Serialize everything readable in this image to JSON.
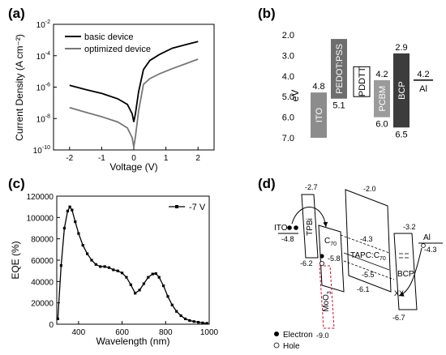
{
  "chart_data": [
    {
      "panel": "(a)",
      "type": "line",
      "xlabel": "Voltage (V)",
      "ylabel": "Current Density (A cm⁻²)",
      "xlim": [
        -2.5,
        2.5
      ],
      "ylim_log10": [
        -10,
        -2
      ],
      "xticks": [
        "-2",
        "-1",
        "0",
        "1",
        "2"
      ],
      "yticks": [
        {
          "base": "10",
          "exp": "-2"
        },
        {
          "base": "10",
          "exp": "-4"
        },
        {
          "base": "10",
          "exp": "-6"
        },
        {
          "base": "10",
          "exp": "-8"
        },
        {
          "base": "10",
          "exp": "-10"
        }
      ],
      "legend_position": "top-left",
      "series": [
        {
          "name": "basic device",
          "color": "#000000",
          "x": [
            -2,
            -1.5,
            -1,
            -0.5,
            -0.2,
            -0.05,
            0,
            0.05,
            0.15,
            0.3,
            0.5,
            0.8,
            1.2,
            1.6,
            2
          ],
          "y": [
            1.3e-06,
            7e-07,
            4e-07,
            1.8e-07,
            8e-08,
            2e-08,
            6e-09,
            2e-08,
            5e-07,
            1.3e-05,
            5e-05,
            0.00012,
            0.0003,
            0.0005,
            0.0008
          ]
        },
        {
          "name": "optimized device",
          "color": "#777777",
          "x": [
            -2,
            -1.5,
            -1,
            -0.5,
            -0.2,
            -0.05,
            0,
            0.05,
            0.15,
            0.3,
            0.5,
            0.8,
            1.2,
            1.6,
            2
          ],
          "y": [
            5e-08,
            2.5e-08,
            1.3e-08,
            6e-09,
            2.5e-09,
            6e-10,
            1.5e-10,
            7e-10,
            3e-08,
            1.5e-06,
            3.5e-06,
            7e-06,
            1.5e-05,
            3e-05,
            6e-05
          ]
        }
      ]
    },
    {
      "panel": "(b)",
      "type": "bar",
      "ylabel": "eV",
      "ylim": [
        7.0,
        2.0
      ],
      "yticks": [
        "2.0",
        "3.0",
        "4.0",
        "5.0",
        "6.0",
        "7.0"
      ],
      "levels": [
        {
          "name": "ITO",
          "top": 4.8,
          "bottom": 7.0,
          "color": "#8c8c8c",
          "labels": [
            "4.8"
          ]
        },
        {
          "name": "PEDOT:PSS",
          "top": 2.2,
          "bottom": 5.1,
          "color": "#6e6e6e",
          "labels": [
            "5.1"
          ]
        },
        {
          "name": "PDDTT",
          "top": 3.55,
          "bottom": 5.0,
          "color": "#ffffff",
          "labels": []
        },
        {
          "name": "PCBM",
          "top": 4.2,
          "bottom": 6.0,
          "color": "#9b9b9b",
          "labels": [
            "4.2",
            "6.0"
          ]
        },
        {
          "name": "BCP",
          "top": 2.9,
          "bottom": 6.5,
          "color": "#3c3c3c",
          "labels": [
            "2.9",
            "6.5"
          ]
        },
        {
          "name": "Al",
          "top": 4.2,
          "bottom": 4.2,
          "color": "#000000",
          "labels": [
            "4.2"
          ]
        }
      ]
    },
    {
      "panel": "(c)",
      "type": "line",
      "xlabel": "Wavelength (nm)",
      "ylabel": "EQE (%)",
      "xlim": [
        300,
        1000
      ],
      "ylim": [
        0,
        120000
      ],
      "xticks": [
        "400",
        "600",
        "800",
        "1000"
      ],
      "yticks": [
        "0",
        "20000",
        "40000",
        "60000",
        "80000",
        "100000",
        "120000"
      ],
      "legend_position": "top-right",
      "series": [
        {
          "name": "-7 V",
          "color": "#000000",
          "x": [
            305,
            320,
            335,
            350,
            360,
            370,
            385,
            400,
            420,
            440,
            460,
            480,
            500,
            520,
            540,
            560,
            580,
            600,
            620,
            640,
            660,
            680,
            700,
            720,
            740,
            755,
            770,
            790,
            810,
            830,
            850,
            870,
            890,
            910,
            930,
            950,
            970,
            990
          ],
          "y": [
            5000,
            55000,
            90000,
            106000,
            110000,
            107000,
            96000,
            85000,
            74000,
            66000,
            60000,
            56000,
            54000,
            54000,
            53000,
            51000,
            50000,
            48000,
            44000,
            37000,
            29000,
            32000,
            38000,
            44000,
            47000,
            47500,
            44000,
            36000,
            26000,
            18000,
            12000,
            8000,
            5000,
            3500,
            2500,
            1800,
            1200,
            800
          ]
        }
      ]
    },
    {
      "panel": "(d)",
      "type": "other",
      "layers": [
        {
          "name": "ITO",
          "labels": [
            "-4.8"
          ]
        },
        {
          "name": "TPBi",
          "labels": [
            "-2.7",
            "-6.2"
          ]
        },
        {
          "name": "C",
          "sub": "70",
          "labels": [
            "-5.8"
          ]
        },
        {
          "name": "MoO",
          "sub": "3",
          "labels": [
            "-9.0"
          ]
        },
        {
          "name": "TAPC:C",
          "sub": "70",
          "labels": [
            "-2.0",
            "-4.3",
            "-5.5",
            "-6.1"
          ]
        },
        {
          "name": "BCP",
          "labels": [
            "-3.2",
            "-6.7"
          ]
        },
        {
          "name": "Al",
          "labels": [
            "-4.3"
          ]
        }
      ],
      "legend": [
        "Electron",
        "Hole"
      ]
    }
  ]
}
